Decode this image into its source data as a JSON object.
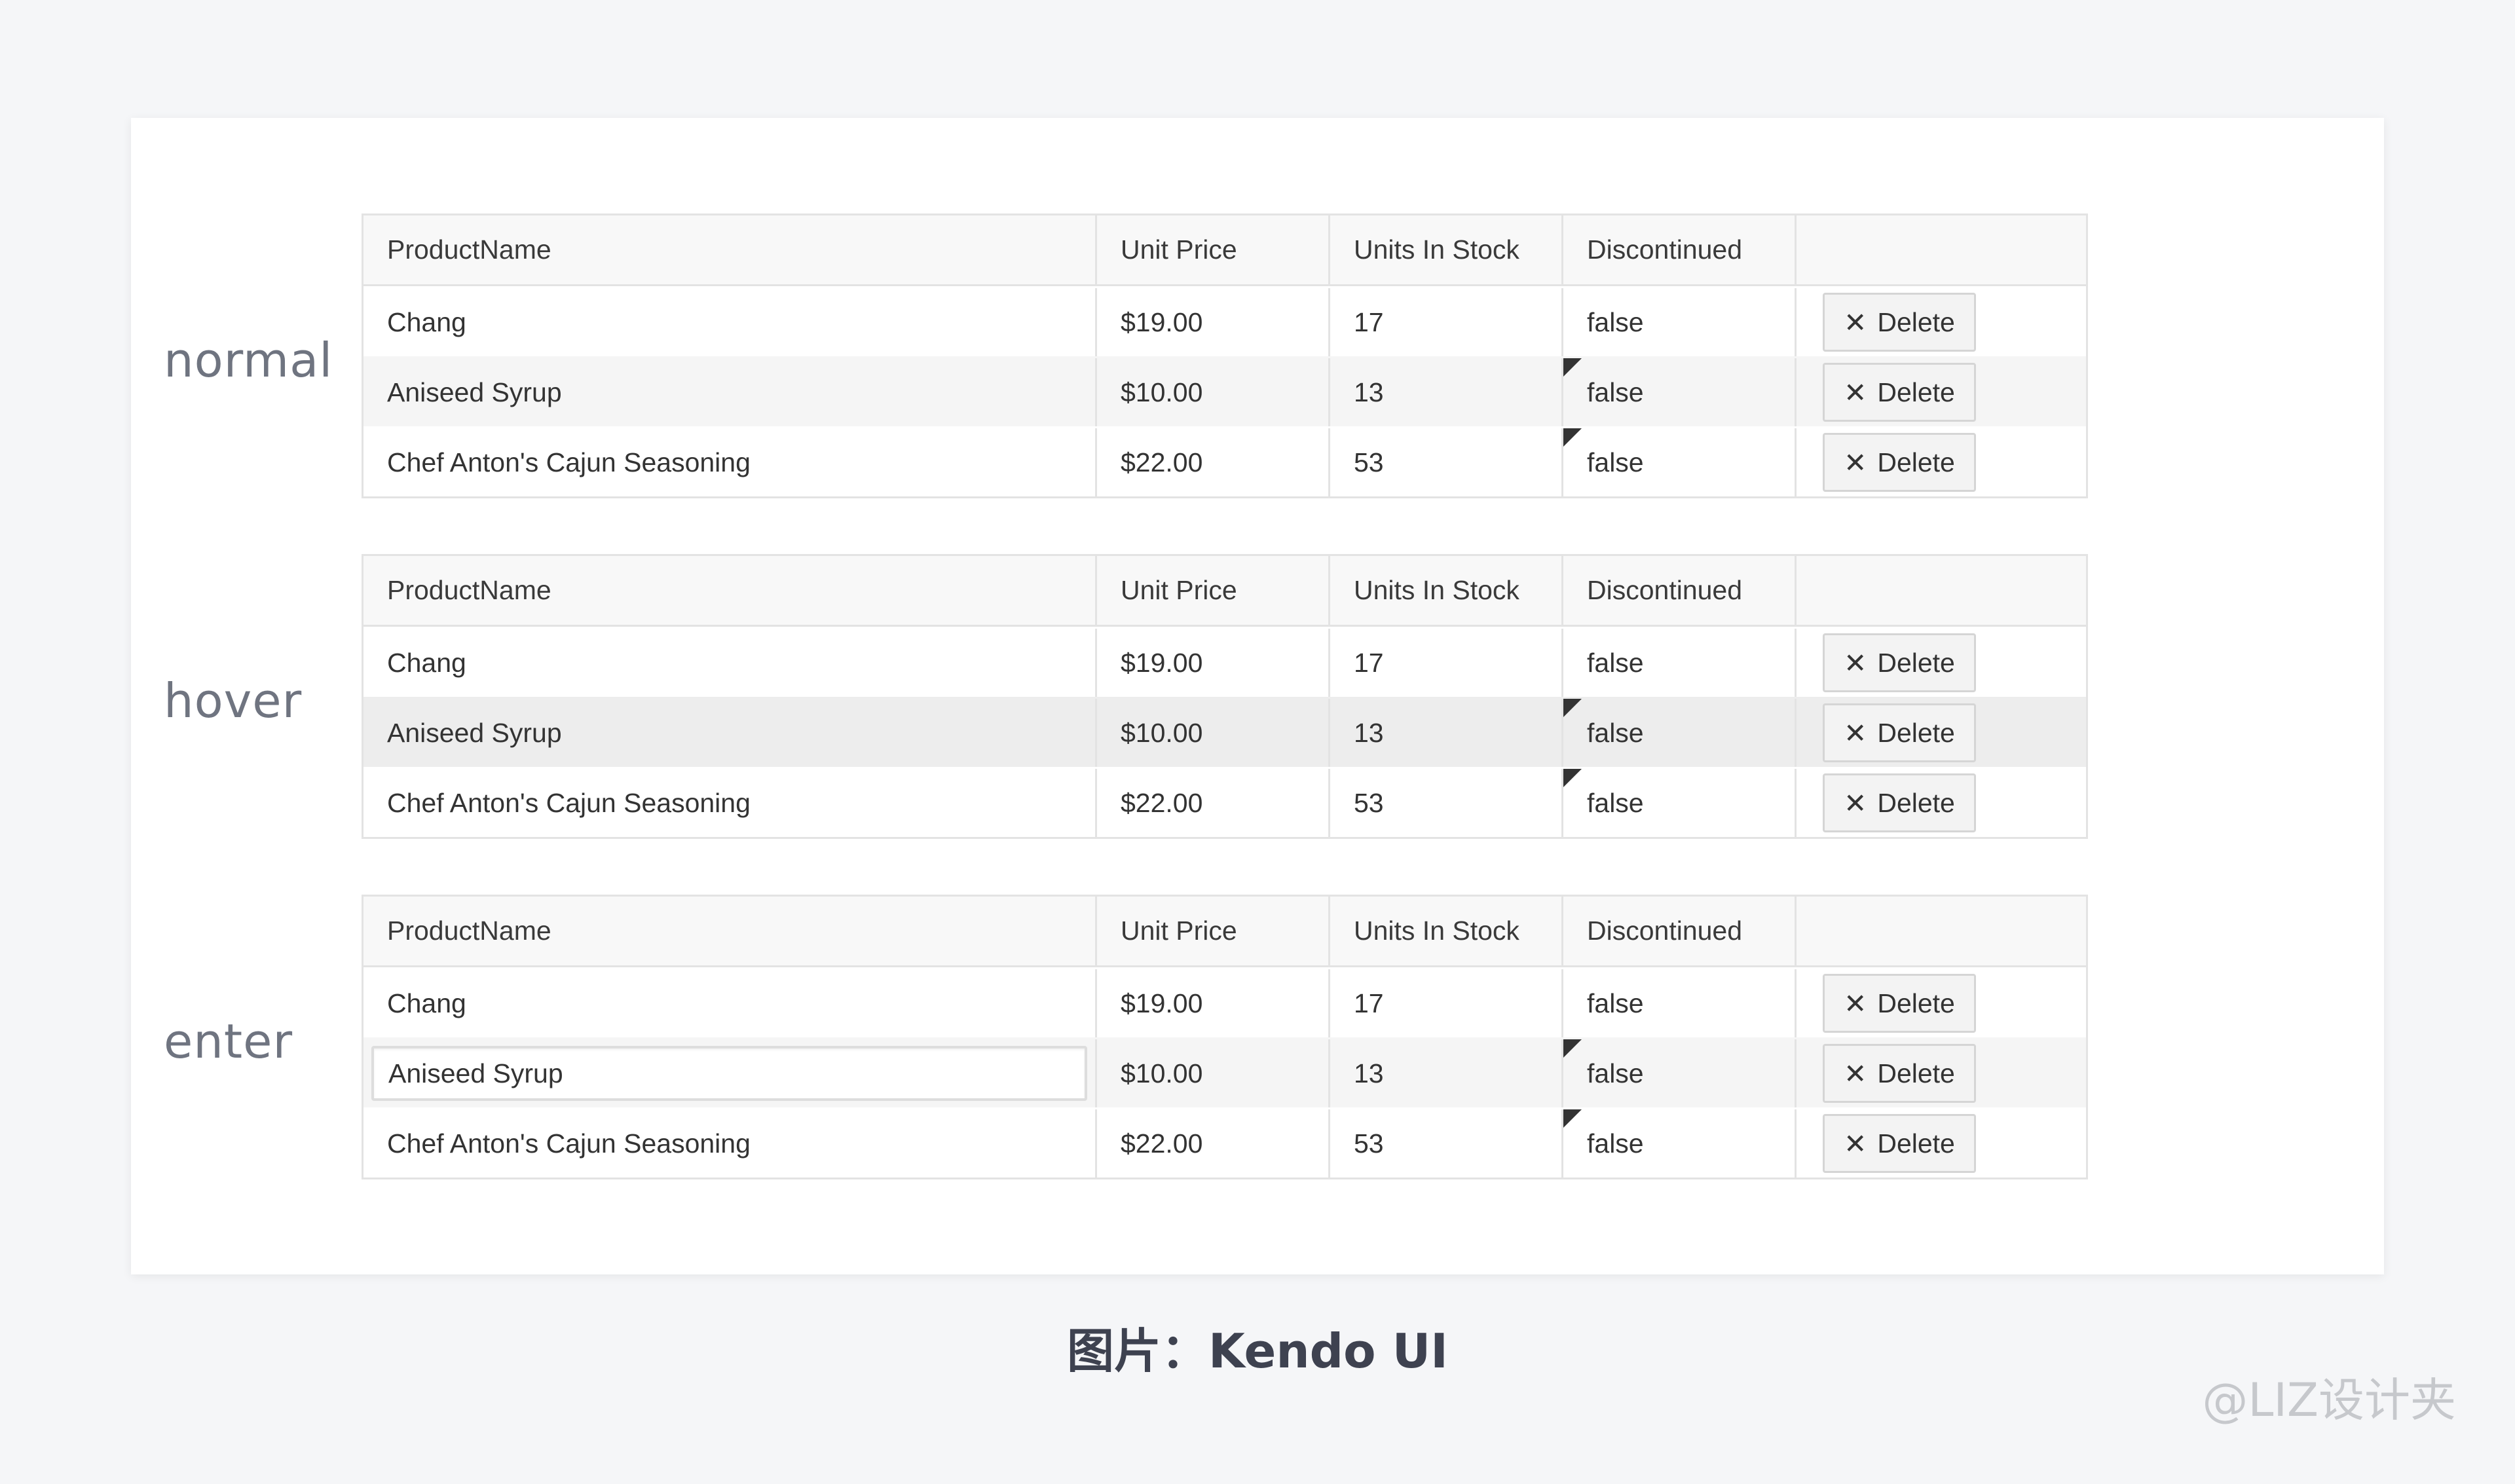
{
  "columns": [
    "ProductName",
    "Unit Price",
    "Units In Stock",
    "Discontinued",
    ""
  ],
  "states": [
    {
      "label": "normal",
      "rows": [
        {
          "name": "Chang",
          "price": "$19.00",
          "stock": "17",
          "discontinued": "false",
          "action": "Delete"
        },
        {
          "name": "Aniseed Syrup",
          "price": "$10.00",
          "stock": "13",
          "discontinued": "false",
          "action": "Delete"
        },
        {
          "name": "Chef Anton's Cajun Seasoning",
          "price": "$22.00",
          "stock": "53",
          "discontinued": "false",
          "action": "Delete"
        }
      ]
    },
    {
      "label": "hover",
      "rows": [
        {
          "name": "Chang",
          "price": "$19.00",
          "stock": "17",
          "discontinued": "false",
          "action": "Delete"
        },
        {
          "name": "Aniseed Syrup",
          "price": "$10.00",
          "stock": "13",
          "discontinued": "false",
          "action": "Delete"
        },
        {
          "name": "Chef Anton's Cajun Seasoning",
          "price": "$22.00",
          "stock": "53",
          "discontinued": "false",
          "action": "Delete"
        }
      ]
    },
    {
      "label": "enter",
      "rows": [
        {
          "name": "Chang",
          "price": "$19.00",
          "stock": "17",
          "discontinued": "false",
          "action": "Delete"
        },
        {
          "name": "Aniseed Syrup",
          "price": "$10.00",
          "stock": "13",
          "discontinued": "false",
          "action": "Delete"
        },
        {
          "name": "Chef Anton's Cajun Seasoning",
          "price": "$22.00",
          "stock": "53",
          "discontinued": "false",
          "action": "Delete"
        }
      ]
    }
  ],
  "icons": {
    "delete": "close-icon"
  },
  "caption": "图片：Kendo UI",
  "watermark": "@LIZ设计夹"
}
